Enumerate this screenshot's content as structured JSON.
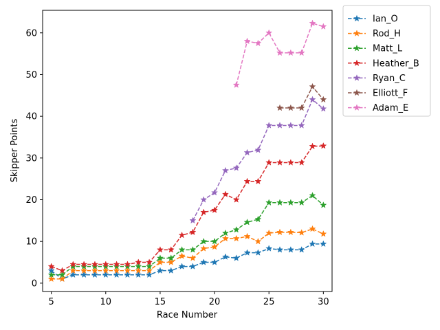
{
  "chart_data": {
    "type": "line",
    "xlabel": "Race Number",
    "ylabel": "Skipper Points",
    "xlim": [
      4.2,
      30.8
    ],
    "ylim": [
      -2.0,
      65.4
    ],
    "xticks": [
      5,
      10,
      15,
      20,
      25,
      30
    ],
    "yticks": [
      0,
      10,
      20,
      30,
      40,
      50,
      60
    ],
    "grid": false,
    "legend_placement": "outside-right-top",
    "line_style": "dashed",
    "marker": "star",
    "series": [
      {
        "name": "Ian_O",
        "color": "#1f77b4",
        "points": [
          [
            5,
            3
          ],
          [
            6,
            1
          ],
          [
            7,
            2
          ],
          [
            8,
            2
          ],
          [
            9,
            2
          ],
          [
            10,
            2
          ],
          [
            11,
            2
          ],
          [
            12,
            2
          ],
          [
            13,
            2
          ],
          [
            14,
            2
          ],
          [
            15,
            3
          ],
          [
            16,
            3
          ],
          [
            17,
            4
          ],
          [
            18,
            4
          ],
          [
            19,
            5
          ],
          [
            20,
            5
          ],
          [
            21,
            6.3
          ],
          [
            22,
            6
          ],
          [
            23,
            7.3
          ],
          [
            24,
            7.3
          ],
          [
            25,
            8.3
          ],
          [
            26,
            8
          ],
          [
            27,
            8
          ],
          [
            28,
            8
          ],
          [
            29,
            9.4
          ],
          [
            30,
            9.4
          ]
        ]
      },
      {
        "name": "Rod_H",
        "color": "#ff7f0e",
        "points": [
          [
            5,
            1
          ],
          [
            6,
            1
          ],
          [
            7,
            3
          ],
          [
            8,
            3
          ],
          [
            9,
            3
          ],
          [
            10,
            3
          ],
          [
            11,
            3
          ],
          [
            12,
            3
          ],
          [
            13,
            3
          ],
          [
            14,
            3
          ],
          [
            15,
            5
          ],
          [
            16,
            5
          ],
          [
            17,
            6.5
          ],
          [
            18,
            6
          ],
          [
            19,
            8.3
          ],
          [
            20,
            8.7
          ],
          [
            21,
            10.7
          ],
          [
            22,
            10.7
          ],
          [
            23,
            11.2
          ],
          [
            24,
            10
          ],
          [
            25,
            12
          ],
          [
            26,
            12.2
          ],
          [
            27,
            12.2
          ],
          [
            28,
            12.1
          ],
          [
            29,
            13
          ],
          [
            30,
            11.8
          ]
        ]
      },
      {
        "name": "Matt_L",
        "color": "#2ca02c",
        "points": [
          [
            5,
            2
          ],
          [
            6,
            2
          ],
          [
            7,
            4
          ],
          [
            8,
            4
          ],
          [
            9,
            4
          ],
          [
            10,
            4
          ],
          [
            11,
            4
          ],
          [
            12,
            4
          ],
          [
            13,
            4
          ],
          [
            14,
            4
          ],
          [
            15,
            6
          ],
          [
            16,
            6
          ],
          [
            17,
            8
          ],
          [
            18,
            8
          ],
          [
            19,
            10
          ],
          [
            20,
            10
          ],
          [
            21,
            12
          ],
          [
            22,
            12.8
          ],
          [
            23,
            14.6
          ],
          [
            24,
            15.3
          ],
          [
            25,
            19.3
          ],
          [
            26,
            19.3
          ],
          [
            27,
            19.3
          ],
          [
            28,
            19.3
          ],
          [
            29,
            21
          ],
          [
            30,
            18.7
          ]
        ]
      },
      {
        "name": "Heather_B",
        "color": "#d62728",
        "points": [
          [
            5,
            4
          ],
          [
            6,
            3
          ],
          [
            7,
            4.5
          ],
          [
            8,
            4.5
          ],
          [
            9,
            4.5
          ],
          [
            10,
            4.5
          ],
          [
            11,
            4.5
          ],
          [
            12,
            4.5
          ],
          [
            13,
            5
          ],
          [
            14,
            5
          ],
          [
            15,
            8
          ],
          [
            16,
            8
          ],
          [
            17,
            11.5
          ],
          [
            18,
            12.2
          ],
          [
            19,
            17
          ],
          [
            20,
            17.5
          ],
          [
            21,
            21.3
          ],
          [
            22,
            20
          ],
          [
            23,
            24.4
          ],
          [
            24,
            24.4
          ],
          [
            25,
            28.9
          ],
          [
            26,
            28.9
          ],
          [
            27,
            28.9
          ],
          [
            28,
            28.9
          ],
          [
            29,
            32.8
          ],
          [
            30,
            32.9
          ]
        ]
      },
      {
        "name": "Ryan_C",
        "color": "#9467bd",
        "points": [
          [
            18,
            15
          ],
          [
            19,
            20
          ],
          [
            20,
            21.7
          ],
          [
            21,
            27
          ],
          [
            22,
            27.6
          ],
          [
            23,
            31.3
          ],
          [
            24,
            31.9
          ],
          [
            25,
            37.8
          ],
          [
            26,
            37.8
          ],
          [
            27,
            37.8
          ],
          [
            28,
            37.8
          ],
          [
            29,
            44
          ],
          [
            30,
            41.8
          ]
        ]
      },
      {
        "name": "Elliott_F",
        "color": "#8c564b",
        "points": [
          [
            26,
            42
          ],
          [
            27,
            42
          ],
          [
            28,
            42
          ],
          [
            29,
            47.1
          ],
          [
            30,
            44
          ]
        ]
      },
      {
        "name": "Adam_E",
        "color": "#e377c2",
        "points": [
          [
            22,
            47.5
          ],
          [
            23,
            58
          ],
          [
            24,
            57.5
          ],
          [
            25,
            60
          ],
          [
            26,
            55.2
          ],
          [
            27,
            55.2
          ],
          [
            28,
            55.2
          ],
          [
            29,
            62.3
          ],
          [
            30,
            61.5
          ]
        ]
      }
    ]
  }
}
